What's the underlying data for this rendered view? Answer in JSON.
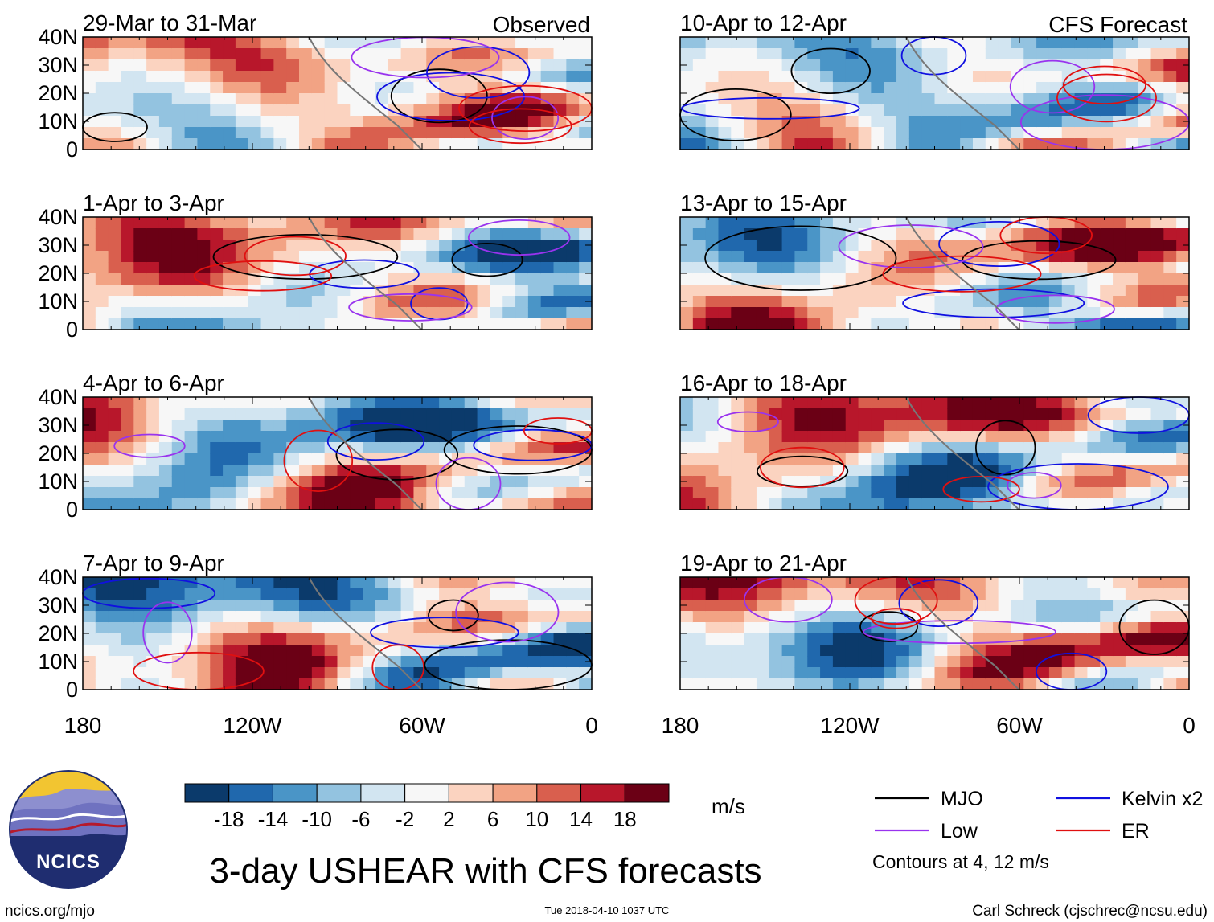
{
  "chart_data": {
    "type": "heatmap",
    "title": "3-day USHEAR with CFS forecasts",
    "variable": "USHEAR",
    "units": "m/s",
    "column_labels": {
      "left": "Observed",
      "right": "CFS Forecast"
    },
    "panels": [
      {
        "column": "left",
        "period": "29-Mar to 31-Mar"
      },
      {
        "column": "left",
        "period": "1-Apr to 3-Apr"
      },
      {
        "column": "left",
        "period": "4-Apr to 6-Apr"
      },
      {
        "column": "left",
        "period": "7-Apr to 9-Apr"
      },
      {
        "column": "right",
        "period": "10-Apr to 12-Apr"
      },
      {
        "column": "right",
        "period": "13-Apr to 15-Apr"
      },
      {
        "column": "right",
        "period": "16-Apr to 18-Apr"
      },
      {
        "column": "right",
        "period": "19-Apr to 21-Apr"
      }
    ],
    "x_axis": {
      "range_lon": [
        -180,
        0
      ],
      "tick_values": [
        -180,
        -120,
        -60,
        0
      ],
      "tick_labels": [
        "180",
        "120W",
        "60W",
        "0"
      ]
    },
    "y_axis": {
      "range_lat": [
        0,
        40
      ],
      "tick_values": [
        0,
        10,
        20,
        30,
        40
      ],
      "tick_labels": [
        "0",
        "10N",
        "20N",
        "30N",
        "40N"
      ]
    },
    "colorbar": {
      "tick_labels": [
        "-18",
        "-14",
        "-10",
        "-6",
        "-2",
        "2",
        "6",
        "10",
        "14",
        "18"
      ],
      "levels": [
        -18,
        -14,
        -10,
        -6,
        -2,
        2,
        6,
        10,
        14,
        18
      ],
      "colors": [
        "#0b3a6b",
        "#2068ad",
        "#4a95c7",
        "#93c3e0",
        "#d2e5f1",
        "#f7f7f7",
        "#fbd3c0",
        "#f2a384",
        "#d95f4e",
        "#b8172b",
        "#6b0015"
      ]
    },
    "contour_legend": [
      {
        "label": "MJO",
        "color": "#000000"
      },
      {
        "label": "Kelvin x2",
        "color": "#1010e0"
      },
      {
        "label": "Low",
        "color": "#9933ee"
      },
      {
        "label": "ER",
        "color": "#e01010"
      }
    ],
    "contour_note": "Contours at 4, 12 m/s"
  },
  "footer": {
    "url": "ncics.org/mjo",
    "timestamp": "Tue 2018-04-10 1037 UTC",
    "author": "Carl Schreck (cjschrec@ncsu.edu)"
  },
  "logo": {
    "text": "NCICS"
  }
}
